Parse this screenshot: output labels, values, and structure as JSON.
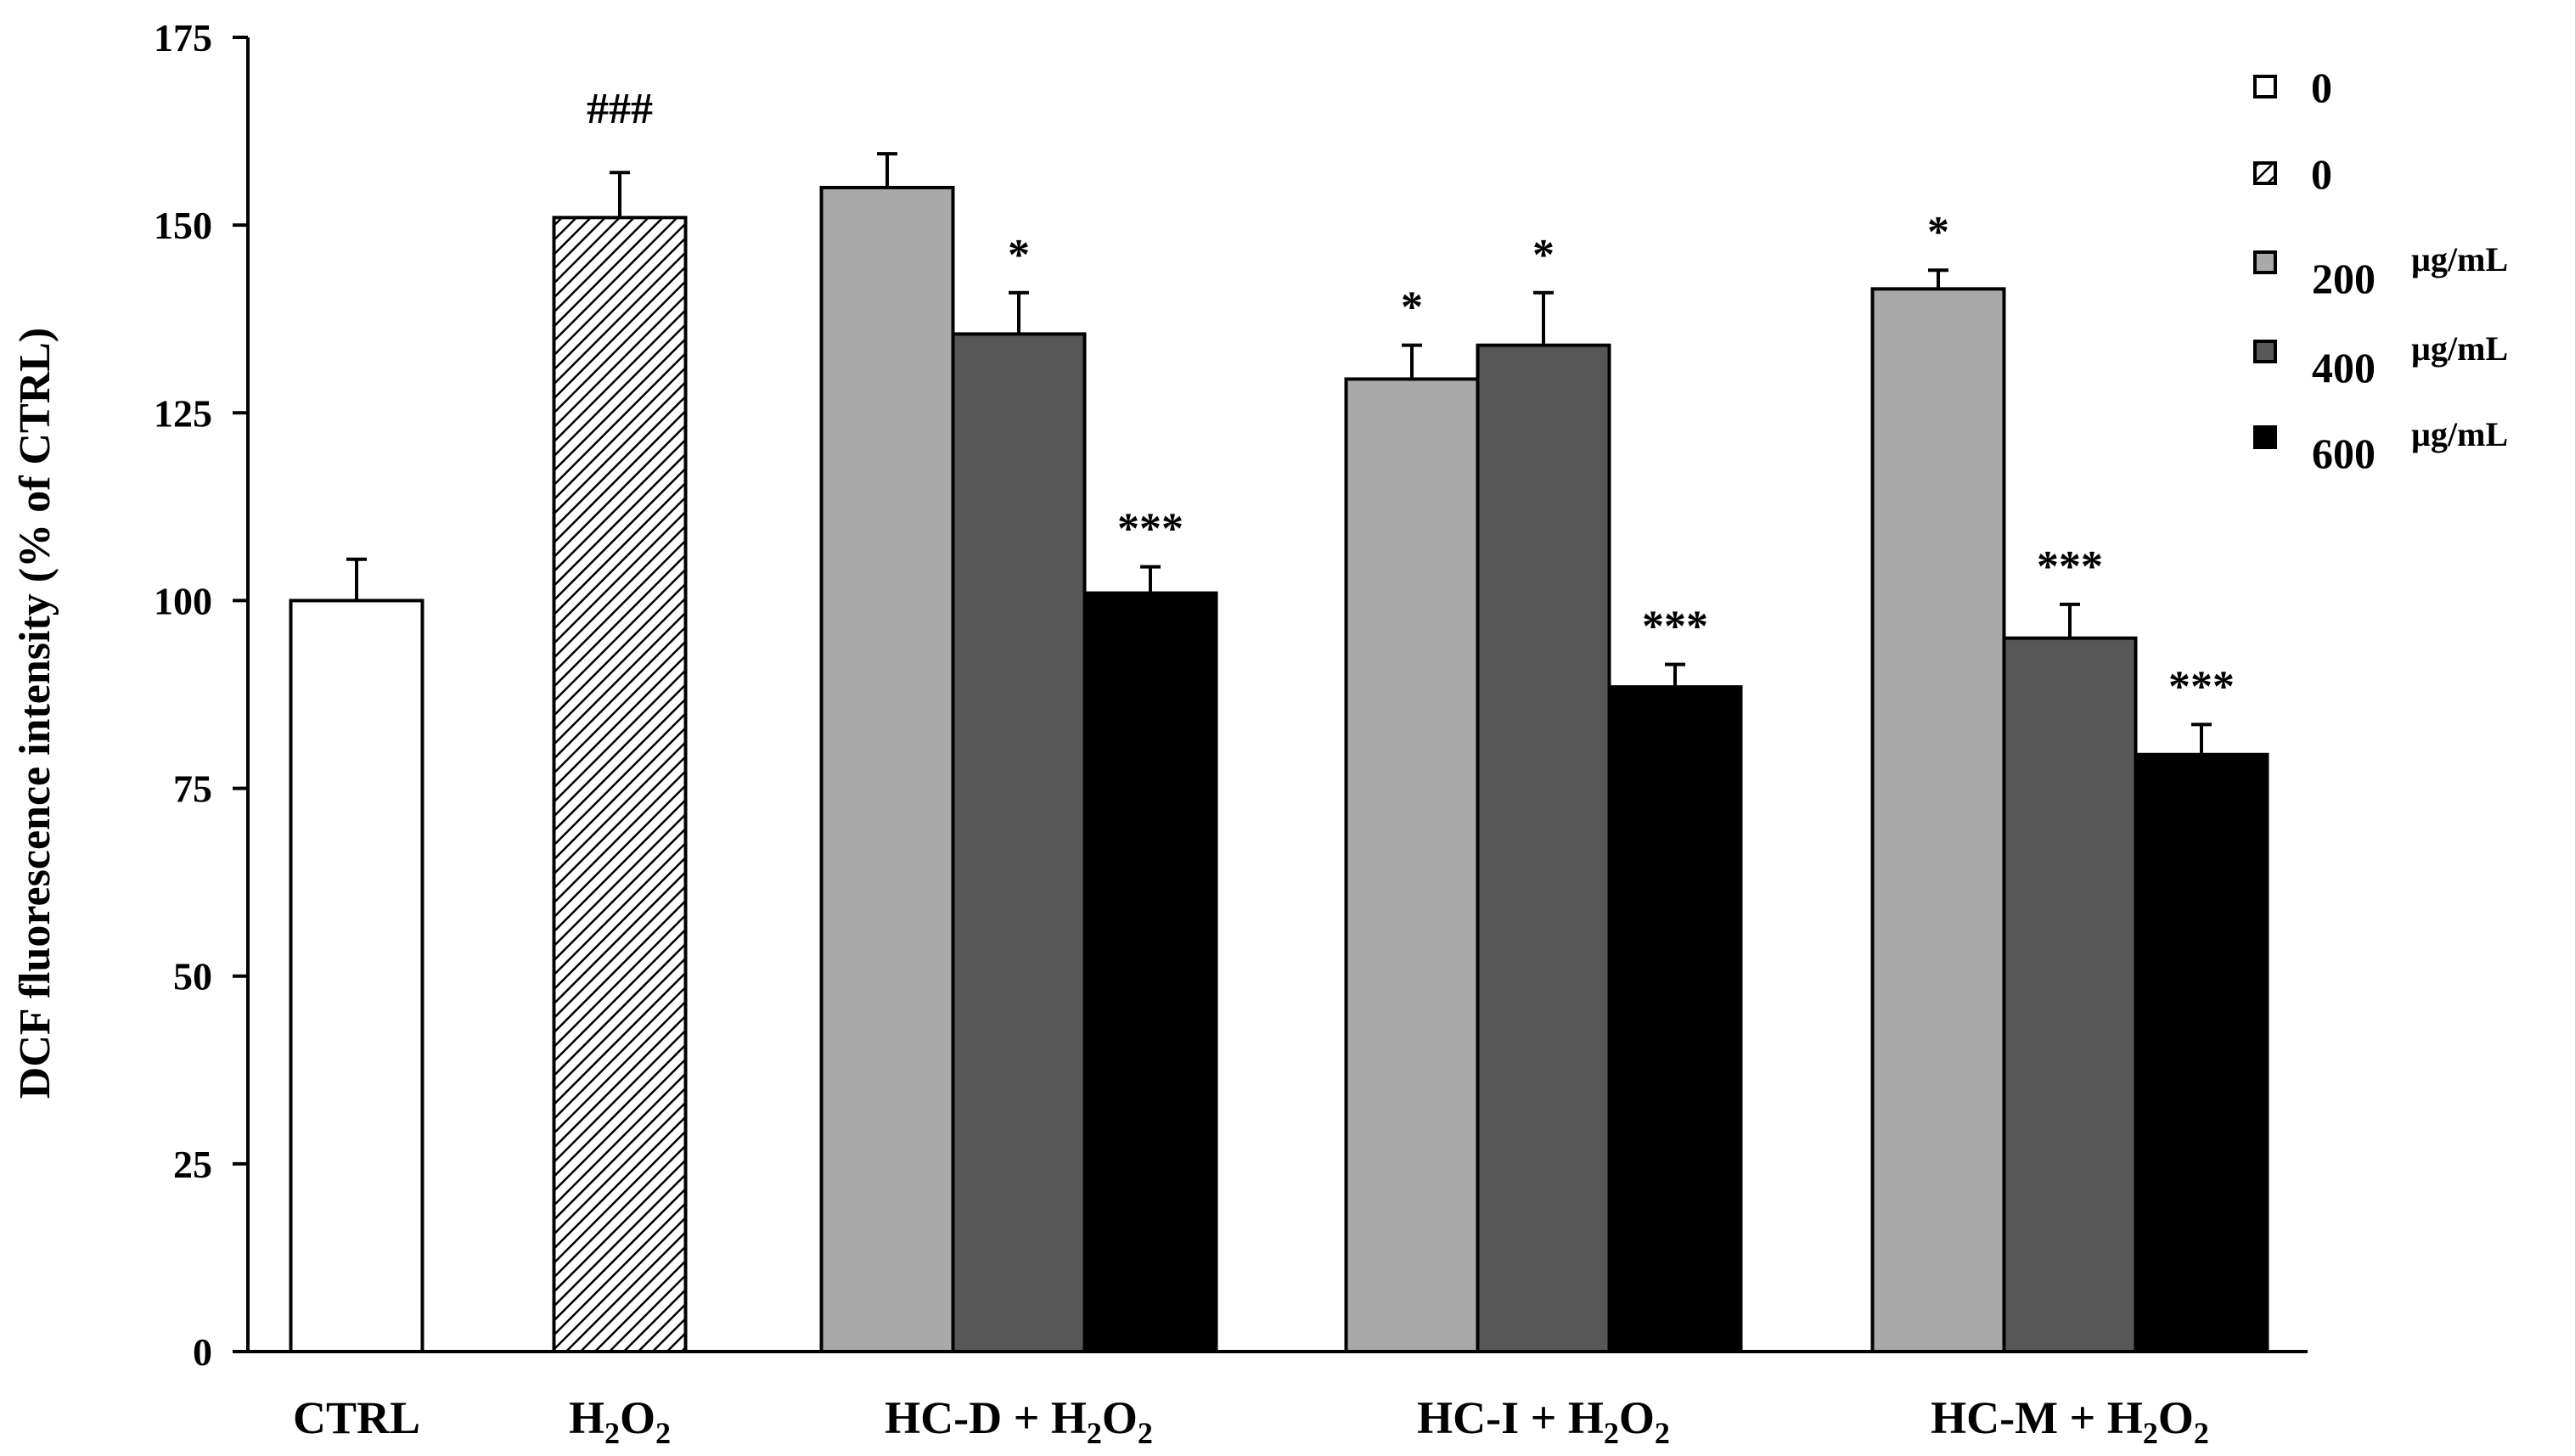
{
  "chart_data": {
    "type": "bar",
    "title": "",
    "xlabel": "",
    "ylabel": "DCF fluorescence intensity (% of CTRL)",
    "ylim": [
      0,
      175
    ],
    "yticks": [
      0,
      25,
      50,
      75,
      100,
      125,
      150,
      175
    ],
    "groups": [
      {
        "label": "CTRL",
        "bars": [
          {
            "series": "0 (control)",
            "value": 100,
            "error": 5.5,
            "annotation": ""
          }
        ]
      },
      {
        "label": "H2O2",
        "bars": [
          {
            "series": "0 (H2O2)",
            "value": 151,
            "error": 6,
            "annotation": "###"
          }
        ]
      },
      {
        "label": "HC-D + H2O2",
        "bars": [
          {
            "series": "200 µg/mL",
            "value": 155,
            "error": 4.5,
            "annotation": ""
          },
          {
            "series": "400 µg/mL",
            "value": 135.5,
            "error": 5.5,
            "annotation": "*"
          },
          {
            "series": "600 µg/mL",
            "value": 101,
            "error": 3.5,
            "annotation": "***"
          }
        ]
      },
      {
        "label": "HC-I + H2O2",
        "bars": [
          {
            "series": "200 µg/mL",
            "value": 129.5,
            "error": 4.5,
            "annotation": "*"
          },
          {
            "series": "400 µg/mL",
            "value": 134,
            "error": 7,
            "annotation": "*"
          },
          {
            "series": "600 µg/mL",
            "value": 88.5,
            "error": 3,
            "annotation": "***"
          }
        ]
      },
      {
        "label": "HC-M + H2O2",
        "bars": [
          {
            "series": "200 µg/mL",
            "value": 141.5,
            "error": 2.5,
            "annotation": "*"
          },
          {
            "series": "400 µg/mL",
            "value": 95,
            "error": 4.5,
            "annotation": "***"
          },
          {
            "series": "600 µg/mL",
            "value": 79.5,
            "error": 4,
            "annotation": "***"
          }
        ]
      }
    ],
    "legend": [
      {
        "value": "0",
        "unit": "",
        "style": "white"
      },
      {
        "value": "0",
        "unit": "",
        "style": "hatched"
      },
      {
        "value": "200",
        "unit": "µg/mL",
        "style": "light-gray"
      },
      {
        "value": "400",
        "unit": "µg/mL",
        "style": "dark-gray"
      },
      {
        "value": "600",
        "unit": "µg/mL",
        "style": "black"
      }
    ],
    "legend_position": "top-right"
  },
  "colors": {
    "white": "#ffffff",
    "light-gray": "#a9a9a9",
    "dark-gray": "#575757",
    "black": "#000000",
    "outline": "#000000"
  }
}
